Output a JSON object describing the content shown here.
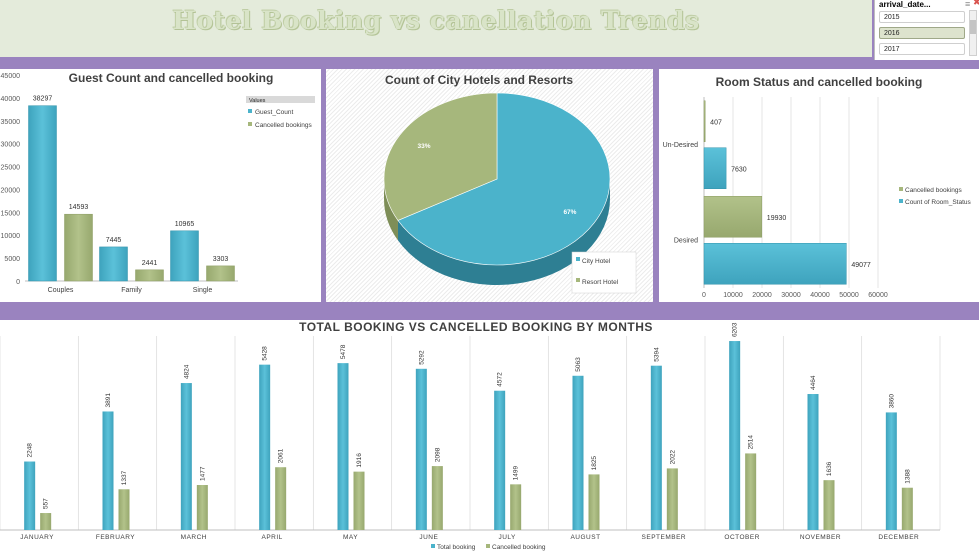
{
  "header": {
    "title": "Hotel Booking vs canellation Trends"
  },
  "slicer": {
    "header": "arrival_date...",
    "filter_icon": "filter-icon",
    "clear_icon": "clear-filter-icon",
    "items": [
      {
        "label": "2015",
        "selected": false
      },
      {
        "label": "2016",
        "selected": true
      },
      {
        "label": "2017",
        "selected": false
      }
    ]
  },
  "colors": {
    "teal": "#4bb3cb",
    "green": "#a6b77c",
    "purple": "#9a83bf"
  },
  "chart_data": [
    {
      "id": "guest",
      "type": "bar",
      "title": "Guest Count and cancelled booking",
      "categories": [
        "Couples",
        "Family",
        "Single"
      ],
      "series": [
        {
          "name": "Guest_Count",
          "values": [
            38297,
            7445,
            10965
          ]
        },
        {
          "name": "Cancelled bookings",
          "values": [
            14593,
            2441,
            3303
          ]
        }
      ],
      "ylim": [
        0,
        45000
      ],
      "yticks": [
        0,
        5000,
        10000,
        15000,
        20000,
        25000,
        30000,
        35000,
        40000,
        45000
      ],
      "legend_title": "Values",
      "legend_position": "right",
      "grid": false
    },
    {
      "id": "city",
      "type": "pie",
      "title": "Count of City Hotels and Resorts",
      "labels": [
        "City Hotel",
        "Resort Hotel"
      ],
      "values": [
        67,
        33
      ],
      "value_labels": [
        "67%",
        "33%"
      ],
      "legend_position": "bottom-right"
    },
    {
      "id": "room",
      "type": "bar",
      "orientation": "horizontal",
      "title": "Room Status and cancelled booking",
      "categories": [
        "Un-Desired",
        "Desired"
      ],
      "series": [
        {
          "name": "Cancelled bookings",
          "values": [
            407,
            19930
          ]
        },
        {
          "name": "Count of Room_Status",
          "values": [
            7630,
            49077
          ]
        }
      ],
      "xlim": [
        0,
        60000
      ],
      "xticks": [
        0,
        10000,
        20000,
        30000,
        40000,
        50000,
        60000
      ],
      "grid": true,
      "legend_position": "right"
    },
    {
      "id": "monthly",
      "type": "bar",
      "title": "TOTAL BOOKING VS CANCELLED BOOKING BY MONTHS",
      "categories": [
        "JANUARY",
        "FEBRUARY",
        "MARCH",
        "APRIL",
        "MAY",
        "JUNE",
        "JULY",
        "AUGUST",
        "SEPTEMBER",
        "OCTOBER",
        "NOVEMBER",
        "DECEMBER"
      ],
      "series": [
        {
          "name": "Total booking",
          "values": [
            2248,
            3891,
            4824,
            5428,
            5478,
            5292,
            4572,
            5063,
            5394,
            6203,
            4464,
            3860
          ]
        },
        {
          "name": "Cancelled booking",
          "values": [
            557,
            1337,
            1477,
            2061,
            1916,
            2098,
            1499,
            1825,
            2022,
            2514,
            1636,
            1388
          ]
        }
      ],
      "ylim": [
        0,
        6500
      ],
      "grid": true,
      "legend_position": "bottom"
    }
  ]
}
